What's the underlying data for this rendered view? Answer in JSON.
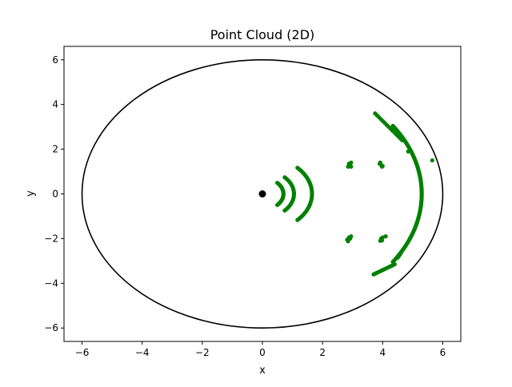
{
  "chart_data": {
    "type": "scatter",
    "title": "Point Cloud (2D)",
    "xlabel": "x",
    "ylabel": "y",
    "xlim": [
      -6.6,
      6.6
    ],
    "ylim": [
      -6.6,
      6.6
    ],
    "xticks": [
      -6,
      -4,
      -2,
      0,
      2,
      4,
      6
    ],
    "yticks": [
      -6,
      -4,
      -2,
      0,
      2,
      4,
      6
    ],
    "xtick_labels": [
      "−6",
      "−4",
      "−2",
      "0",
      "2",
      "4",
      "6"
    ],
    "ytick_labels": [
      "−6",
      "−4",
      "−2",
      "0",
      "2",
      "4",
      "6"
    ],
    "grid": false,
    "boundary_circle": {
      "center": [
        0,
        0
      ],
      "radius": 6,
      "color": "#000000"
    },
    "origin_point": {
      "x": 0,
      "y": 0,
      "color": "#000000"
    },
    "point_color": "#008000",
    "arcs": [
      {
        "radius": 0.7,
        "angle_from": -45,
        "angle_to": 45
      },
      {
        "radius": 1.05,
        "angle_from": -45,
        "angle_to": 45
      },
      {
        "radius": 1.65,
        "angle_from": -45,
        "angle_to": 45
      },
      {
        "radius": 5.3,
        "angle_from": -35,
        "angle_to": 35
      }
    ],
    "segments": [
      {
        "from": [
          3.75,
          3.6
        ],
        "to": [
          4.65,
          2.4
        ]
      },
      {
        "from": [
          3.7,
          -3.6
        ],
        "to": [
          4.4,
          -3.15
        ]
      },
      {
        "from": [
          4.5,
          -2.85
        ],
        "to": [
          4.6,
          -2.65
        ]
      }
    ],
    "clusters": [
      {
        "x": 2.9,
        "y": 1.3,
        "points": [
          [
            2.85,
            1.22
          ],
          [
            2.9,
            1.3
          ],
          [
            2.95,
            1.4
          ],
          [
            2.88,
            1.35
          ],
          [
            2.95,
            1.22
          ]
        ]
      },
      {
        "x": 2.9,
        "y": -2.0,
        "points": [
          [
            2.82,
            -2.05
          ],
          [
            2.88,
            -1.95
          ],
          [
            2.95,
            -1.9
          ],
          [
            2.85,
            -2.12
          ],
          [
            2.92,
            -2.0
          ]
        ]
      },
      {
        "x": 3.95,
        "y": 1.3,
        "points": [
          [
            3.92,
            1.4
          ],
          [
            3.95,
            1.3
          ],
          [
            3.98,
            1.22
          ],
          [
            3.9,
            1.35
          ],
          [
            4.0,
            1.25
          ]
        ]
      },
      {
        "x": 4.0,
        "y": -2.0,
        "points": [
          [
            3.92,
            -2.1
          ],
          [
            3.95,
            -2.0
          ],
          [
            4.0,
            -1.95
          ],
          [
            4.1,
            -1.9
          ],
          [
            3.98,
            -2.08
          ]
        ]
      }
    ],
    "isolated_points": [
      [
        4.85,
        1.9
      ],
      [
        5.65,
        1.5
      ]
    ]
  }
}
